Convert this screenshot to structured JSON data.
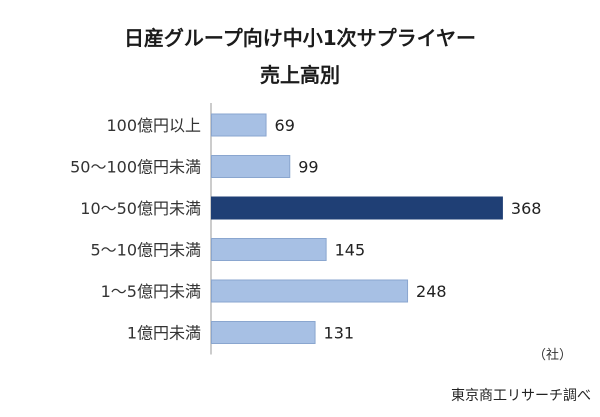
{
  "chart_data": {
    "type": "bar",
    "orientation": "horizontal",
    "title_line1": "日産グループ向け中小1次サプライヤー",
    "title_line2": "売上高別",
    "categories": [
      "100億円以上",
      "50～100億円未満",
      "10～50億円未満",
      "5～10億円未満",
      "1～5億円未満",
      "1億円未満"
    ],
    "values": [
      69,
      99,
      368,
      145,
      248,
      131
    ],
    "highlight_index": 2,
    "unit": "（社）",
    "source": "東京商工リサーチ調べ",
    "colors": {
      "bar": "#a7c0e4",
      "bar_border": "#8aa6cf",
      "highlight": "#1f3f75",
      "axis": "#9a9a9a"
    }
  }
}
